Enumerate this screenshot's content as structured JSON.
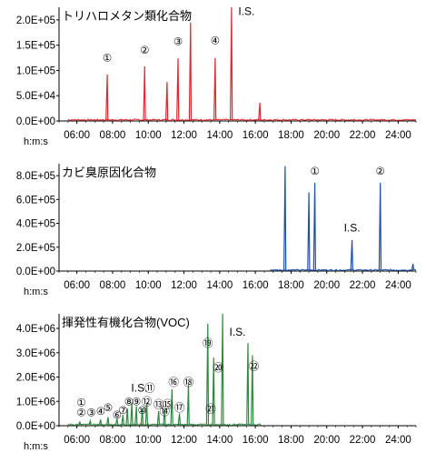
{
  "chart_data": [
    {
      "type": "line",
      "title": "トリハロメタン類化合物",
      "color": "#e3262e",
      "xlabel": "h:m:s",
      "x_ticks": [
        "06:00",
        "08:00",
        "10:00",
        "12:00",
        "14:00",
        "16:00",
        "18:00",
        "20:00",
        "22:00",
        "24:00"
      ],
      "xlim": [
        "05:00",
        "25:00"
      ],
      "y_ticks": [
        "0.0E+00",
        "5.0E+04",
        "1.0E+05",
        "1.5E+05",
        "2.0E+05"
      ],
      "y_tick_values": [
        0,
        50000,
        100000,
        150000,
        200000
      ],
      "ylim": [
        0,
        225000
      ],
      "peaks": [
        {
          "x": "07:42",
          "y": 92000
        },
        {
          "x": "09:48",
          "y": 108000
        },
        {
          "x": "11:03",
          "y": 77000
        },
        {
          "x": "11:40",
          "y": 124000
        },
        {
          "x": "12:22",
          "y": 195000
        },
        {
          "x": "13:45",
          "y": 125000
        },
        {
          "x": "14:40",
          "y": 230000
        },
        {
          "x": "16:15",
          "y": 36000
        }
      ],
      "annotations": [
        {
          "text": "①",
          "x": "07:42",
          "y": 118000
        },
        {
          "text": "②",
          "x": "09:48",
          "y": 133000
        },
        {
          "text": "③",
          "x": "11:40",
          "y": 150000
        },
        {
          "text": "④",
          "x": "13:45",
          "y": 152000
        },
        {
          "text": "I.S.",
          "x": "15:30",
          "y": 210000
        }
      ]
    },
    {
      "type": "line",
      "title": "カビ臭原因化合物",
      "color": "#1f4fa8",
      "xlabel": "h:m:s",
      "x_ticks": [
        "06:00",
        "08:00",
        "10:00",
        "12:00",
        "14:00",
        "16:00",
        "18:00",
        "20:00",
        "22:00",
        "24:00"
      ],
      "xlim": [
        "05:00",
        "25:00"
      ],
      "y_ticks": [
        "0.0E+00",
        "2.0E+05",
        "4.0E+05",
        "6.0E+05",
        "8.0E+05"
      ],
      "y_tick_values": [
        0,
        200000,
        400000,
        600000,
        800000
      ],
      "ylim": [
        0,
        900000
      ],
      "baseline_start": "16:50",
      "peaks": [
        {
          "x": "17:40",
          "y": 880000
        },
        {
          "x": "19:00",
          "y": 660000
        },
        {
          "x": "19:20",
          "y": 740000
        },
        {
          "x": "21:25",
          "y": 260000
        },
        {
          "x": "23:00",
          "y": 740000
        },
        {
          "x": "24:50",
          "y": 60000
        }
      ],
      "annotations": [
        {
          "text": "①",
          "x": "19:20",
          "y": 810000
        },
        {
          "text": "I.S.",
          "x": "21:25",
          "y": 330000
        },
        {
          "text": "②",
          "x": "23:00",
          "y": 810000
        }
      ]
    },
    {
      "type": "line",
      "title": "揮発性有機化合物(VOC)",
      "color": "#2e8a3e",
      "xlabel": "h:m:s",
      "x_ticks": [
        "06:00",
        "08:00",
        "10:00",
        "12:00",
        "14:00",
        "16:00",
        "18:00",
        "20:00",
        "22:00",
        "24:00"
      ],
      "xlim": [
        "05:00",
        "25:00"
      ],
      "y_ticks": [
        "0.0E+00",
        "1.0E+06",
        "2.0E+06",
        "3.0E+06",
        "4.0E+06"
      ],
      "y_tick_values": [
        0,
        1000000,
        2000000,
        3000000,
        4000000
      ],
      "ylim": [
        0,
        4600000
      ],
      "baseline_end": "16:20",
      "peaks": [
        {
          "x": "06:10",
          "y": 150000
        },
        {
          "x": "06:45",
          "y": 200000
        },
        {
          "x": "07:20",
          "y": 250000
        },
        {
          "x": "07:45",
          "y": 350000
        },
        {
          "x": "08:15",
          "y": 300000
        },
        {
          "x": "08:35",
          "y": 450000
        },
        {
          "x": "08:50",
          "y": 700000
        },
        {
          "x": "09:05",
          "y": 950000
        },
        {
          "x": "09:20",
          "y": 800000
        },
        {
          "x": "09:40",
          "y": 700000
        },
        {
          "x": "09:55",
          "y": 950000
        },
        {
          "x": "10:35",
          "y": 600000
        },
        {
          "x": "10:55",
          "y": 700000
        },
        {
          "x": "11:20",
          "y": 1500000
        },
        {
          "x": "11:45",
          "y": 500000
        },
        {
          "x": "12:15",
          "y": 1700000
        },
        {
          "x": "13:20",
          "y": 4200000
        },
        {
          "x": "13:40",
          "y": 2800000
        },
        {
          "x": "14:10",
          "y": 4600000
        },
        {
          "x": "15:35",
          "y": 3400000
        },
        {
          "x": "15:50",
          "y": 2900000
        }
      ],
      "annotations": [
        {
          "text": "①",
          "x": "06:15",
          "y": 800000
        },
        {
          "text": "②",
          "x": "06:15",
          "y": 400000
        },
        {
          "text": "③",
          "x": "06:48",
          "y": 400000
        },
        {
          "text": "④",
          "x": "07:20",
          "y": 450000
        },
        {
          "text": "⑤",
          "x": "07:45",
          "y": 600000
        },
        {
          "text": "⑥",
          "x": "08:15",
          "y": 300000
        },
        {
          "text": "⑦",
          "x": "08:35",
          "y": 480000
        },
        {
          "text": "⑧",
          "x": "08:55",
          "y": 850000
        },
        {
          "text": "⑨",
          "x": "09:20",
          "y": 850000
        },
        {
          "text": "⑩",
          "x": "09:40",
          "y": 480000
        },
        {
          "text": "⑪",
          "x": "10:05",
          "y": 1400000
        },
        {
          "text": "⑫",
          "x": "09:55",
          "y": 850000
        },
        {
          "text": "⑬",
          "x": "10:35",
          "y": 730000
        },
        {
          "text": "⑭",
          "x": "10:55",
          "y": 450000
        },
        {
          "text": "⑮",
          "x": "11:05",
          "y": 730000
        },
        {
          "text": "⑯",
          "x": "11:25",
          "y": 1650000
        },
        {
          "text": "⑰",
          "x": "11:45",
          "y": 600000
        },
        {
          "text": "⑱",
          "x": "12:15",
          "y": 1650000
        },
        {
          "text": "⑲",
          "x": "13:20",
          "y": 3250000
        },
        {
          "text": "⑳",
          "x": "13:55",
          "y": 2250000
        },
        {
          "text": "㉑",
          "x": "13:30",
          "y": 550000
        },
        {
          "text": "㉒",
          "x": "15:55",
          "y": 2300000
        },
        {
          "text": "I.S.",
          "x": "09:30",
          "y": 1400000
        },
        {
          "text": "I.S.",
          "x": "15:00",
          "y": 3700000
        }
      ]
    }
  ]
}
